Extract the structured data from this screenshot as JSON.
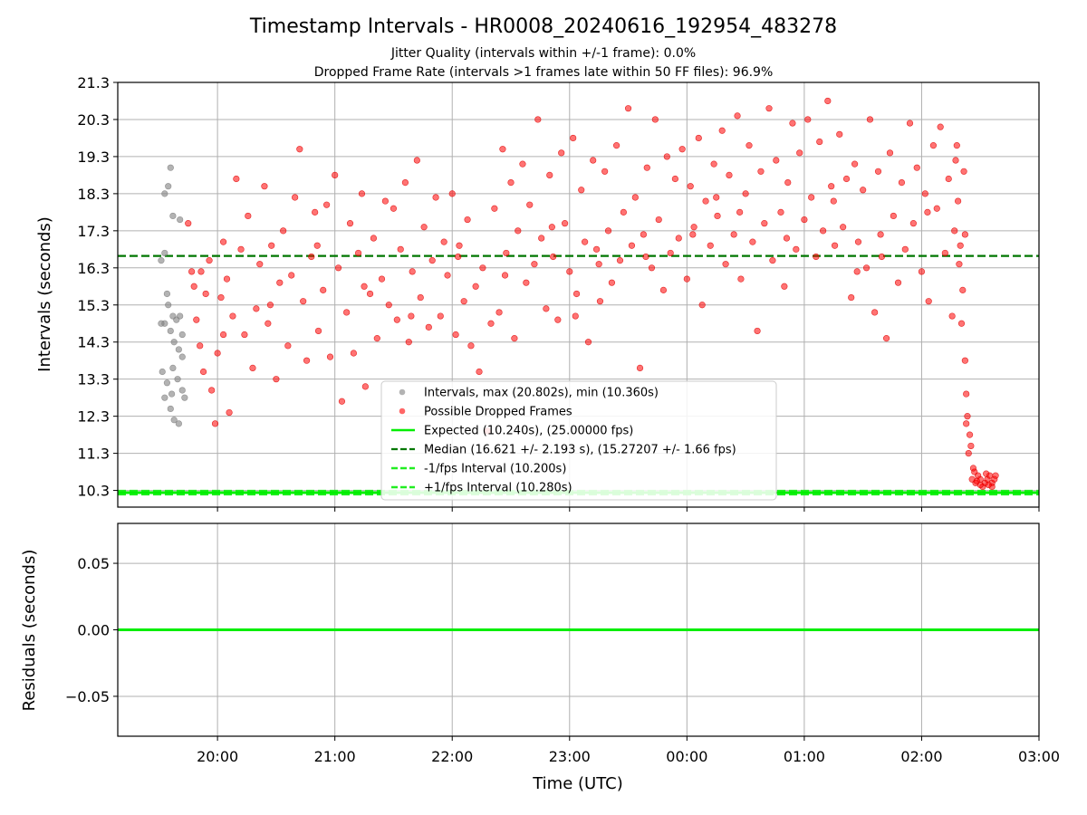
{
  "chart_data": {
    "type": "scatter",
    "title": "Timestamp Intervals - HR0008_20240616_192954_483278",
    "subtitle_lines": [
      "Jitter Quality (intervals within +/-1 frame): 0.0%",
      "Dropped Frame Rate (intervals >1 frames late within 50 FF files): 96.9%"
    ],
    "xlabel": "Time (UTC)",
    "x_tick_labels": [
      "20:00",
      "21:00",
      "22:00",
      "23:00",
      "00:00",
      "01:00",
      "02:00",
      "03:00"
    ],
    "x_range_hours": [
      19.15,
      27.0
    ],
    "x_tick_hours": [
      20,
      21,
      22,
      23,
      24,
      25,
      26,
      27
    ],
    "grid": true,
    "legend_placement": "lower-center",
    "colors": {
      "intervals": "#808080",
      "dropped": "#ff0000",
      "expected": "#00ee00",
      "median": "#007700",
      "fps_bounds": "#22ee22"
    },
    "top_panel": {
      "ylabel": "Intervals (seconds)",
      "y_ticks": [
        10.3,
        11.3,
        12.3,
        13.3,
        14.3,
        15.3,
        16.3,
        17.3,
        18.3,
        19.3,
        20.3,
        21.3
      ],
      "y_tick_labels": [
        "10.3",
        "11.3",
        "12.3",
        "13.3",
        "14.3",
        "15.3",
        "16.3",
        "17.3",
        "18.3",
        "19.3",
        "20.3",
        "21.3"
      ],
      "ylim": [
        9.85,
        21.3
      ],
      "expected": 10.24,
      "median": 16.621,
      "minus_fps": 10.2,
      "plus_fps": 10.28,
      "interval_points_gray": [
        [
          19.55,
          18.3
        ],
        [
          19.58,
          18.5
        ],
        [
          19.6,
          19.0
        ],
        [
          19.62,
          17.7
        ],
        [
          19.68,
          17.6
        ],
        [
          19.52,
          16.5
        ],
        [
          19.55,
          16.7
        ],
        [
          19.58,
          15.3
        ],
        [
          19.62,
          15.0
        ],
        [
          19.65,
          14.9
        ],
        [
          19.55,
          14.8
        ],
        [
          19.6,
          14.6
        ],
        [
          19.63,
          14.3
        ],
        [
          19.67,
          14.1
        ],
        [
          19.7,
          13.9
        ],
        [
          19.53,
          13.5
        ],
        [
          19.57,
          13.2
        ],
        [
          19.62,
          13.6
        ],
        [
          19.66,
          13.3
        ],
        [
          19.7,
          13.0
        ],
        [
          19.55,
          12.8
        ],
        [
          19.6,
          12.5
        ],
        [
          19.63,
          12.2
        ],
        [
          19.67,
          12.1
        ],
        [
          19.72,
          12.8
        ],
        [
          19.52,
          14.8
        ],
        [
          19.57,
          15.6
        ],
        [
          19.68,
          15.0
        ],
        [
          19.7,
          14.5
        ],
        [
          19.61,
          12.9
        ]
      ],
      "dropped_points_cluster_low": [
        [
          26.43,
          10.6
        ],
        [
          26.46,
          10.5
        ],
        [
          26.48,
          10.7
        ],
        [
          26.5,
          10.6
        ],
        [
          26.52,
          10.4
        ],
        [
          26.54,
          10.5
        ],
        [
          26.56,
          10.6
        ],
        [
          26.58,
          10.7
        ],
        [
          26.6,
          10.5
        ],
        [
          26.62,
          10.6
        ],
        [
          26.45,
          10.8
        ],
        [
          26.5,
          10.45
        ],
        [
          26.55,
          10.75
        ],
        [
          26.6,
          10.4
        ],
        [
          26.63,
          10.7
        ],
        [
          26.4,
          11.3
        ],
        [
          26.41,
          11.8
        ],
        [
          26.39,
          12.3
        ],
        [
          26.38,
          12.9
        ],
        [
          26.37,
          13.8
        ],
        [
          26.42,
          11.5
        ],
        [
          26.38,
          12.1
        ],
        [
          26.44,
          10.9
        ],
        [
          26.47,
          10.55
        ],
        [
          26.57,
          10.45
        ]
      ],
      "dropped_points": [
        [
          19.75,
          17.5
        ],
        [
          19.78,
          16.2
        ],
        [
          19.8,
          15.8
        ],
        [
          19.82,
          14.9
        ],
        [
          19.85,
          14.2
        ],
        [
          19.88,
          13.5
        ],
        [
          19.9,
          15.6
        ],
        [
          19.93,
          16.5
        ],
        [
          19.95,
          13.0
        ],
        [
          19.98,
          12.1
        ],
        [
          20.0,
          14.0
        ],
        [
          20.03,
          15.5
        ],
        [
          20.05,
          17.0
        ],
        [
          20.08,
          16.0
        ],
        [
          20.1,
          12.4
        ],
        [
          20.13,
          15.0
        ],
        [
          20.16,
          18.7
        ],
        [
          20.2,
          16.8
        ],
        [
          20.23,
          14.5
        ],
        [
          20.26,
          17.7
        ],
        [
          20.3,
          13.6
        ],
        [
          20.33,
          15.2
        ],
        [
          20.36,
          16.4
        ],
        [
          20.4,
          18.5
        ],
        [
          20.43,
          14.8
        ],
        [
          20.46,
          16.9
        ],
        [
          20.5,
          13.3
        ],
        [
          20.53,
          15.9
        ],
        [
          20.56,
          17.3
        ],
        [
          20.6,
          14.2
        ],
        [
          20.63,
          16.1
        ],
        [
          20.66,
          18.2
        ],
        [
          20.7,
          19.5
        ],
        [
          20.73,
          15.4
        ],
        [
          20.76,
          13.8
        ],
        [
          20.8,
          16.6
        ],
        [
          20.83,
          17.8
        ],
        [
          20.86,
          14.6
        ],
        [
          20.9,
          15.7
        ],
        [
          20.93,
          18.0
        ],
        [
          20.96,
          13.9
        ],
        [
          21.0,
          18.8
        ],
        [
          21.03,
          16.3
        ],
        [
          21.06,
          12.7
        ],
        [
          21.1,
          15.1
        ],
        [
          21.13,
          17.5
        ],
        [
          21.16,
          14.0
        ],
        [
          21.2,
          16.7
        ],
        [
          21.23,
          18.3
        ],
        [
          21.26,
          13.1
        ],
        [
          21.3,
          15.6
        ],
        [
          21.33,
          17.1
        ],
        [
          21.36,
          14.4
        ],
        [
          21.4,
          16.0
        ],
        [
          21.43,
          18.1
        ],
        [
          21.46,
          15.3
        ],
        [
          21.5,
          17.9
        ],
        [
          21.53,
          14.9
        ],
        [
          21.56,
          16.8
        ],
        [
          21.6,
          18.6
        ],
        [
          21.63,
          14.3
        ],
        [
          21.66,
          16.2
        ],
        [
          21.7,
          19.2
        ],
        [
          21.73,
          15.5
        ],
        [
          21.76,
          17.4
        ],
        [
          21.8,
          14.7
        ],
        [
          21.83,
          16.5
        ],
        [
          21.86,
          18.2
        ],
        [
          21.9,
          15.0
        ],
        [
          21.93,
          17.0
        ],
        [
          21.96,
          16.1
        ],
        [
          22.0,
          18.3
        ],
        [
          22.03,
          14.5
        ],
        [
          22.06,
          16.9
        ],
        [
          22.1,
          15.4
        ],
        [
          22.13,
          17.6
        ],
        [
          22.16,
          14.2
        ],
        [
          22.2,
          15.8
        ],
        [
          22.23,
          13.5
        ],
        [
          22.26,
          16.3
        ],
        [
          22.3,
          11.9
        ],
        [
          22.33,
          14.8
        ],
        [
          22.36,
          17.9
        ],
        [
          22.4,
          15.1
        ],
        [
          22.43,
          19.5
        ],
        [
          22.46,
          16.7
        ],
        [
          22.5,
          18.6
        ],
        [
          22.53,
          14.4
        ],
        [
          22.56,
          17.3
        ],
        [
          22.6,
          19.1
        ],
        [
          22.63,
          15.9
        ],
        [
          22.66,
          18.0
        ],
        [
          22.7,
          16.4
        ],
        [
          22.73,
          20.3
        ],
        [
          22.76,
          17.1
        ],
        [
          22.8,
          15.2
        ],
        [
          22.83,
          18.8
        ],
        [
          22.86,
          16.6
        ],
        [
          22.9,
          14.9
        ],
        [
          22.93,
          19.4
        ],
        [
          22.96,
          17.5
        ],
        [
          23.0,
          16.2
        ],
        [
          23.03,
          19.8
        ],
        [
          23.06,
          15.6
        ],
        [
          23.1,
          18.4
        ],
        [
          23.13,
          17.0
        ],
        [
          23.16,
          14.3
        ],
        [
          23.2,
          19.2
        ],
        [
          23.23,
          16.8
        ],
        [
          23.26,
          15.4
        ],
        [
          23.3,
          18.9
        ],
        [
          23.33,
          17.3
        ],
        [
          23.36,
          15.9
        ],
        [
          23.4,
          19.6
        ],
        [
          23.43,
          16.5
        ],
        [
          23.46,
          17.8
        ],
        [
          23.5,
          20.6
        ],
        [
          23.53,
          16.9
        ],
        [
          23.56,
          18.2
        ],
        [
          23.6,
          13.6
        ],
        [
          23.63,
          17.2
        ],
        [
          23.66,
          19.0
        ],
        [
          23.7,
          16.3
        ],
        [
          23.73,
          20.3
        ],
        [
          23.76,
          17.6
        ],
        [
          23.8,
          15.7
        ],
        [
          23.83,
          19.3
        ],
        [
          23.86,
          16.7
        ],
        [
          23.9,
          18.7
        ],
        [
          23.93,
          17.1
        ],
        [
          23.96,
          19.5
        ],
        [
          24.0,
          16.0
        ],
        [
          24.03,
          18.5
        ],
        [
          24.06,
          17.4
        ],
        [
          24.1,
          19.8
        ],
        [
          24.13,
          15.3
        ],
        [
          24.16,
          18.1
        ],
        [
          24.2,
          16.9
        ],
        [
          24.23,
          19.1
        ],
        [
          24.26,
          17.7
        ],
        [
          24.3,
          20.0
        ],
        [
          24.33,
          16.4
        ],
        [
          24.36,
          18.8
        ],
        [
          24.4,
          17.2
        ],
        [
          24.43,
          20.4
        ],
        [
          24.46,
          16.0
        ],
        [
          24.5,
          18.3
        ],
        [
          24.53,
          19.6
        ],
        [
          24.56,
          17.0
        ],
        [
          24.6,
          14.6
        ],
        [
          24.63,
          18.9
        ],
        [
          24.66,
          17.5
        ],
        [
          24.7,
          20.6
        ],
        [
          24.73,
          16.5
        ],
        [
          24.76,
          19.2
        ],
        [
          24.8,
          17.8
        ],
        [
          24.83,
          15.8
        ],
        [
          24.86,
          18.6
        ],
        [
          24.9,
          20.2
        ],
        [
          24.93,
          16.8
        ],
        [
          24.96,
          19.4
        ],
        [
          25.0,
          17.6
        ],
        [
          25.03,
          20.3
        ],
        [
          25.06,
          18.2
        ],
        [
          25.1,
          16.6
        ],
        [
          25.13,
          19.7
        ],
        [
          25.16,
          17.3
        ],
        [
          25.2,
          20.8
        ],
        [
          25.23,
          18.5
        ],
        [
          25.26,
          16.9
        ],
        [
          25.3,
          19.9
        ],
        [
          25.33,
          17.4
        ],
        [
          25.36,
          18.7
        ],
        [
          25.4,
          15.5
        ],
        [
          25.43,
          19.1
        ],
        [
          25.46,
          17.0
        ],
        [
          25.5,
          18.4
        ],
        [
          25.53,
          16.3
        ],
        [
          25.56,
          20.3
        ],
        [
          25.6,
          15.1
        ],
        [
          25.63,
          18.9
        ],
        [
          25.66,
          16.6
        ],
        [
          25.7,
          14.4
        ],
        [
          25.73,
          19.4
        ],
        [
          25.76,
          17.7
        ],
        [
          25.8,
          15.9
        ],
        [
          25.83,
          18.6
        ],
        [
          25.86,
          16.8
        ],
        [
          25.9,
          20.2
        ],
        [
          25.93,
          17.5
        ],
        [
          25.96,
          19.0
        ],
        [
          26.0,
          16.2
        ],
        [
          26.03,
          18.3
        ],
        [
          26.06,
          15.4
        ],
        [
          26.1,
          19.6
        ],
        [
          26.13,
          17.9
        ],
        [
          26.16,
          20.1
        ],
        [
          26.2,
          16.7
        ],
        [
          26.23,
          18.7
        ],
        [
          26.26,
          15.0
        ],
        [
          26.28,
          17.3
        ],
        [
          26.3,
          19.6
        ],
        [
          26.32,
          16.4
        ],
        [
          26.34,
          14.8
        ],
        [
          26.36,
          18.9
        ],
        [
          26.37,
          17.2
        ],
        [
          26.35,
          15.7
        ],
        [
          26.33,
          16.9
        ],
        [
          26.31,
          18.1
        ],
        [
          26.29,
          19.2
        ],
        [
          19.86,
          16.2
        ],
        [
          20.05,
          14.5
        ],
        [
          20.45,
          15.3
        ],
        [
          20.85,
          16.9
        ],
        [
          21.25,
          15.8
        ],
        [
          21.65,
          15.0
        ],
        [
          22.05,
          16.6
        ],
        [
          22.45,
          16.1
        ],
        [
          22.85,
          17.4
        ],
        [
          23.25,
          16.4
        ],
        [
          23.65,
          16.6
        ],
        [
          24.05,
          17.2
        ],
        [
          24.45,
          17.8
        ],
        [
          24.85,
          17.1
        ],
        [
          25.25,
          18.1
        ],
        [
          25.65,
          17.2
        ],
        [
          26.05,
          17.8
        ],
        [
          25.45,
          16.2
        ],
        [
          24.25,
          18.2
        ],
        [
          23.05,
          15.0
        ]
      ]
    },
    "bottom_panel": {
      "ylabel": "Residuals (seconds)",
      "y_ticks": [
        0.05,
        0.0,
        -0.05
      ],
      "y_tick_labels": [
        "0.05",
        "0.00",
        "−0.05"
      ],
      "ylim": [
        -0.08,
        0.08
      ],
      "residual_line": 0.0
    },
    "legend": [
      {
        "label": "Intervals, max (20.802s), min (10.360s)",
        "marker": "gray-dot"
      },
      {
        "label": "Possible Dropped Frames",
        "marker": "red-dot"
      },
      {
        "label": "Expected (10.240s), (25.00000 fps)",
        "marker": "green-solid"
      },
      {
        "label": "Median (16.621 +/- 2.193 s), (15.27207 +/- 1.66 fps)",
        "marker": "darkgreen-dashed"
      },
      {
        "label": "-1/fps Interval (10.200s)",
        "marker": "green-dashed"
      },
      {
        "label": "+1/fps Interval (10.280s)",
        "marker": "green-dashed"
      }
    ]
  }
}
